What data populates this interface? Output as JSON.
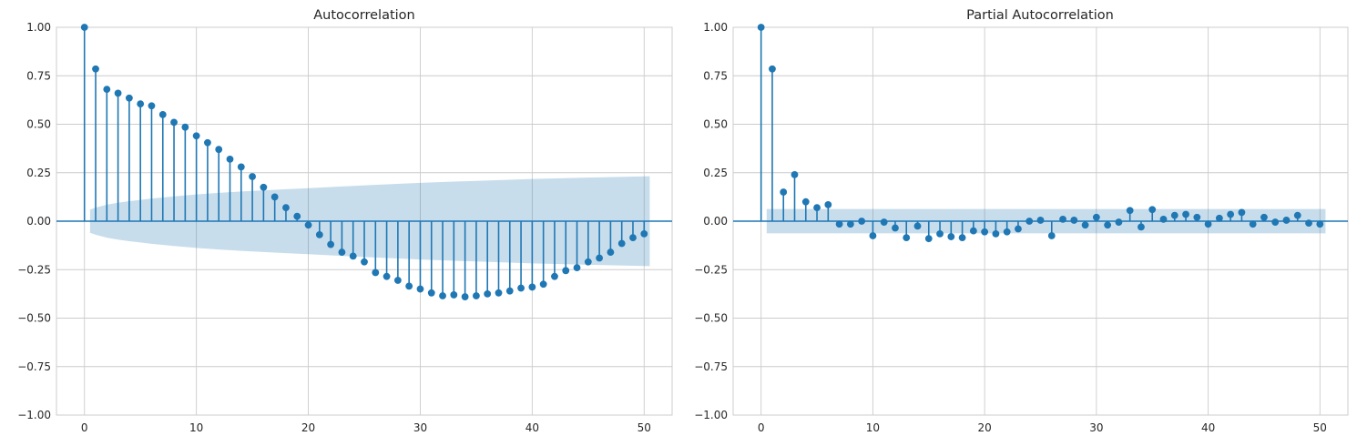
{
  "chart_data": [
    {
      "type": "stem",
      "title": "Autocorrelation",
      "xlabel": "",
      "ylabel": "",
      "xlim": [
        -2.5,
        52.5
      ],
      "ylim": [
        -1.0,
        1.0
      ],
      "xticks": [
        0,
        10,
        20,
        30,
        40,
        50
      ],
      "yticks": [
        -1.0,
        -0.75,
        -0.5,
        -0.25,
        0.0,
        0.25,
        0.5,
        0.75,
        1.0
      ],
      "ytick_labels": [
        "−1.00",
        "−0.75",
        "−0.50",
        "−0.25",
        "0.00",
        "0.25",
        "0.50",
        "0.75",
        "1.00"
      ],
      "grid": true,
      "lags": [
        0,
        1,
        2,
        3,
        4,
        5,
        6,
        7,
        8,
        9,
        10,
        11,
        12,
        13,
        14,
        15,
        16,
        17,
        18,
        19,
        20,
        21,
        22,
        23,
        24,
        25,
        26,
        27,
        28,
        29,
        30,
        31,
        32,
        33,
        34,
        35,
        36,
        37,
        38,
        39,
        40,
        41,
        42,
        43,
        44,
        45,
        46,
        47,
        48,
        49,
        50
      ],
      "values": [
        1.0,
        0.785,
        0.68,
        0.66,
        0.635,
        0.605,
        0.595,
        0.55,
        0.51,
        0.485,
        0.44,
        0.405,
        0.37,
        0.32,
        0.28,
        0.23,
        0.175,
        0.125,
        0.07,
        0.025,
        -0.02,
        -0.07,
        -0.12,
        -0.16,
        -0.18,
        -0.21,
        -0.265,
        -0.285,
        -0.305,
        -0.335,
        -0.35,
        -0.37,
        -0.385,
        -0.38,
        -0.39,
        -0.385,
        -0.375,
        -0.37,
        -0.36,
        -0.345,
        -0.34,
        -0.325,
        -0.285,
        -0.255,
        -0.24,
        -0.21,
        -0.19,
        -0.16,
        -0.115,
        -0.085,
        -0.065
      ],
      "confidence_band": {
        "lags": [
          0.5,
          1,
          2,
          3,
          4,
          5,
          6,
          8,
          10,
          12,
          14,
          16,
          18,
          20,
          25,
          30,
          35,
          40,
          45,
          50.5
        ],
        "upper": [
          0.06,
          0.07,
          0.085,
          0.095,
          0.103,
          0.11,
          0.117,
          0.128,
          0.138,
          0.146,
          0.153,
          0.159,
          0.165,
          0.17,
          0.185,
          0.198,
          0.208,
          0.218,
          0.225,
          0.232
        ]
      }
    },
    {
      "type": "stem",
      "title": "Partial Autocorrelation",
      "xlabel": "",
      "ylabel": "",
      "xlim": [
        -2.5,
        52.5
      ],
      "ylim": [
        -1.0,
        1.0
      ],
      "xticks": [
        0,
        10,
        20,
        30,
        40,
        50
      ],
      "yticks": [
        -1.0,
        -0.75,
        -0.5,
        -0.25,
        0.0,
        0.25,
        0.5,
        0.75,
        1.0
      ],
      "ytick_labels": [
        "−1.00",
        "−0.75",
        "−0.50",
        "−0.25",
        "0.00",
        "0.25",
        "0.50",
        "0.75",
        "1.00"
      ],
      "grid": true,
      "lags": [
        0,
        1,
        2,
        3,
        4,
        5,
        6,
        7,
        8,
        9,
        10,
        11,
        12,
        13,
        14,
        15,
        16,
        17,
        18,
        19,
        20,
        21,
        22,
        23,
        24,
        25,
        26,
        27,
        28,
        29,
        30,
        31,
        32,
        33,
        34,
        35,
        36,
        37,
        38,
        39,
        40,
        41,
        42,
        43,
        44,
        45,
        46,
        47,
        48,
        49,
        50
      ],
      "values": [
        1.0,
        0.785,
        0.15,
        0.24,
        0.1,
        0.07,
        0.085,
        -0.015,
        -0.015,
        0.0,
        -0.075,
        -0.005,
        -0.035,
        -0.085,
        -0.025,
        -0.09,
        -0.065,
        -0.08,
        -0.085,
        -0.05,
        -0.055,
        -0.065,
        -0.055,
        -0.04,
        0.0,
        0.005,
        -0.075,
        0.01,
        0.005,
        -0.02,
        0.02,
        -0.02,
        -0.005,
        0.055,
        -0.03,
        0.06,
        0.01,
        0.03,
        0.035,
        0.02,
        -0.015,
        0.015,
        0.035,
        0.045,
        -0.015,
        0.02,
        -0.005,
        0.005,
        0.03,
        -0.01,
        -0.015
      ],
      "confidence_band": {
        "lags": [
          0.5,
          50.5
        ],
        "upper": [
          0.063,
          0.063
        ]
      }
    }
  ]
}
